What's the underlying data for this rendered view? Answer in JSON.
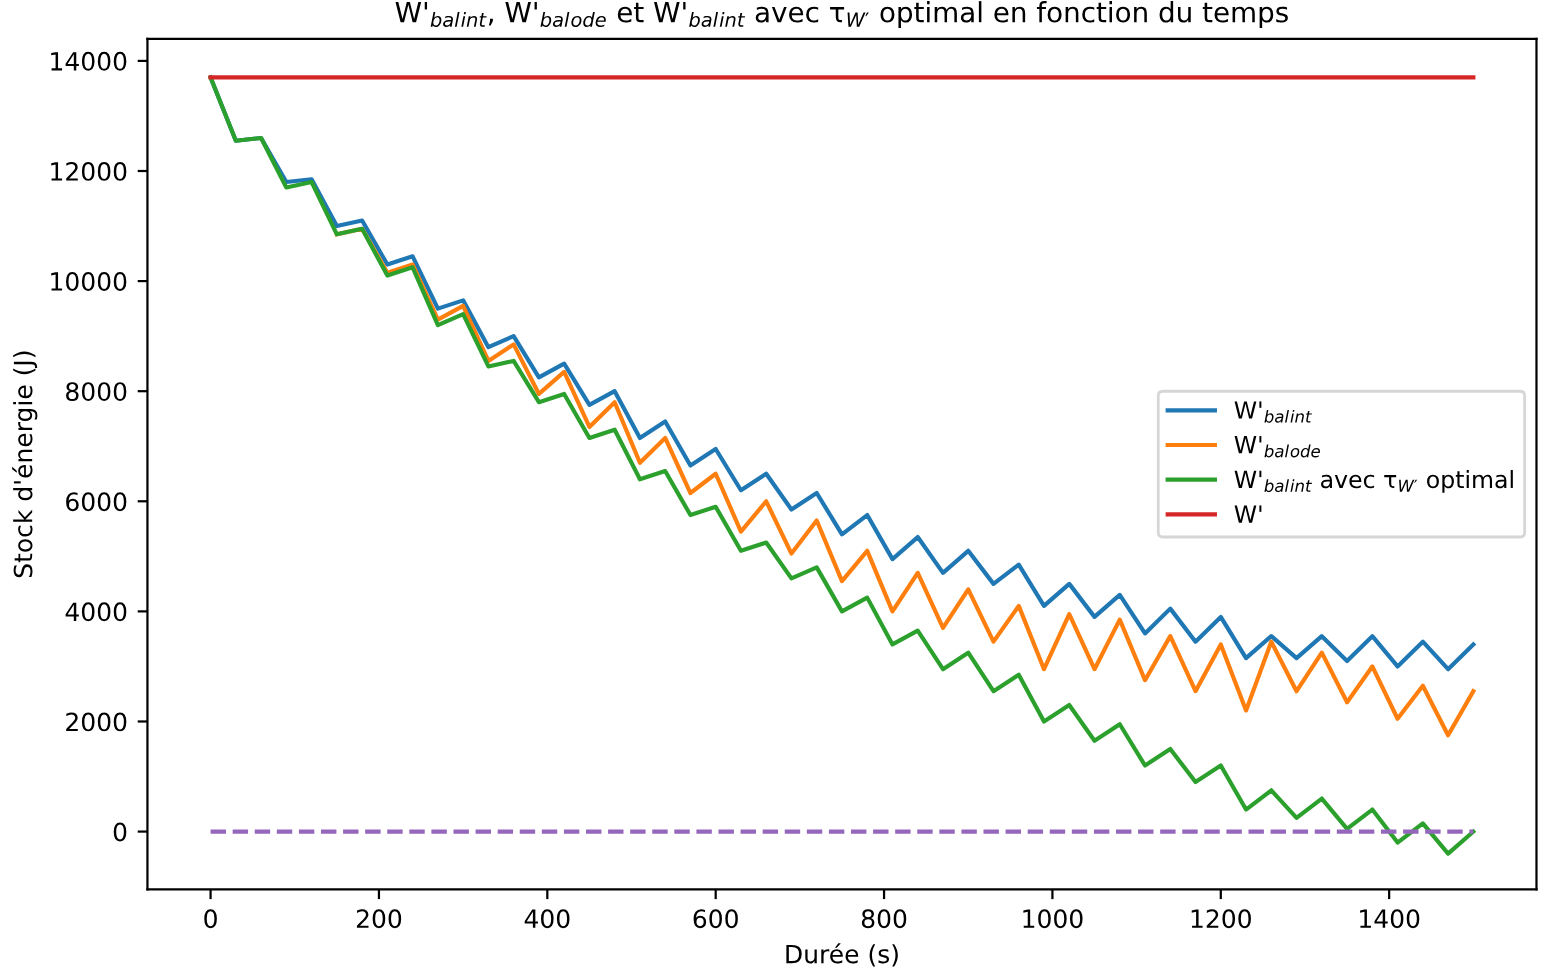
{
  "chart_data": {
    "type": "line",
    "title": "W'$_{bal}$$_{int}$, W'$_{bal}$$_{ode}$ et W'$_{bal}$$_{int}$ avec τ$_{W′}$ optimal en fonction du temps",
    "xlabel": "Durée (s)",
    "ylabel": "Stock d'énergie (J)",
    "x": [
      0,
      30,
      60,
      90,
      120,
      150,
      180,
      210,
      240,
      270,
      300,
      330,
      360,
      390,
      420,
      450,
      480,
      510,
      540,
      570,
      600,
      630,
      660,
      690,
      720,
      750,
      780,
      810,
      840,
      870,
      900,
      930,
      960,
      990,
      1020,
      1050,
      1080,
      1110,
      1140,
      1170,
      1200,
      1230,
      1260,
      1290,
      1320,
      1350,
      1380,
      1410,
      1440,
      1470,
      1500
    ],
    "series": [
      {
        "name": "W'$_{bal}$$_{int}$",
        "color": "#1f77b4",
        "values": [
          13700,
          12550,
          12600,
          11800,
          11850,
          11000,
          11100,
          10300,
          10450,
          9500,
          9650,
          8800,
          9000,
          8250,
          8500,
          7750,
          8000,
          7150,
          7450,
          6650,
          6950,
          6200,
          6500,
          5850,
          6150,
          5400,
          5750,
          4950,
          5350,
          4700,
          5100,
          4500,
          4850,
          4100,
          4500,
          3900,
          4300,
          3600,
          4050,
          3450,
          3900,
          3150,
          3550,
          3150,
          3550,
          3100,
          3550,
          3000,
          3450,
          2950,
          3400
        ]
      },
      {
        "name": "W'$_{bal}$$_{ode}$",
        "color": "#ff7f0e",
        "values": [
          null,
          null,
          null,
          null,
          null,
          10850,
          10950,
          10150,
          10300,
          9300,
          9550,
          8550,
          8850,
          7950,
          8350,
          7350,
          7800,
          6700,
          7150,
          6150,
          6500,
          5450,
          6000,
          5050,
          5650,
          4550,
          5100,
          4000,
          4700,
          3700,
          4400,
          3450,
          4100,
          2950,
          3950,
          2950,
          3850,
          2750,
          3550,
          2550,
          3400,
          2200,
          3450,
          2550,
          3250,
          2350,
          3000,
          2050,
          2650,
          1750,
          2550
        ]
      },
      {
        "name": "W'$_{bal}$$_{int}$ avec τ$_{W′}$ optimal",
        "color": "#2ca02c",
        "values": [
          13700,
          12550,
          12600,
          11700,
          11800,
          10850,
          10950,
          10100,
          10250,
          9200,
          9400,
          8450,
          8550,
          7800,
          7950,
          7150,
          7300,
          6400,
          6550,
          5750,
          5900,
          5100,
          5250,
          4600,
          4800,
          4000,
          4250,
          3400,
          3650,
          2950,
          3250,
          2550,
          2850,
          2000,
          2300,
          1650,
          1950,
          1200,
          1500,
          900,
          1200,
          400,
          750,
          250,
          600,
          50,
          400,
          -200,
          150,
          -400,
          0
        ]
      },
      {
        "name": "W'",
        "color": "#d62728",
        "values": [
          13700,
          13700,
          13700,
          13700,
          13700,
          13700,
          13700,
          13700,
          13700,
          13700,
          13700,
          13700,
          13700,
          13700,
          13700,
          13700,
          13700,
          13700,
          13700,
          13700,
          13700,
          13700,
          13700,
          13700,
          13700,
          13700,
          13700,
          13700,
          13700,
          13700,
          13700,
          13700,
          13700,
          13700,
          13700,
          13700,
          13700,
          13700,
          13700,
          13700,
          13700,
          13700,
          13700,
          13700,
          13700,
          13700,
          13700,
          13700,
          13700,
          13700,
          13700
        ]
      },
      {
        "color": "#9467bd",
        "values": [
          0,
          0,
          0,
          0,
          0,
          0,
          0,
          0,
          0,
          0,
          0,
          0,
          0,
          0,
          0,
          0,
          0,
          0,
          0,
          0,
          0,
          0,
          0,
          0,
          0,
          0,
          0,
          0,
          0,
          0,
          0,
          0,
          0,
          0,
          0,
          0,
          0,
          0,
          0,
          0,
          0,
          0,
          0,
          0,
          0,
          0,
          0,
          0,
          0,
          0,
          0
        ],
        "line_style": "dashed"
      }
    ],
    "xlim": [
      -75,
      1575
    ],
    "ylim": [
      -1050,
      14400
    ],
    "xticks": [
      0,
      200,
      400,
      600,
      800,
      1000,
      1200,
      1400
    ],
    "yticks": [
      0,
      2000,
      4000,
      6000,
      8000,
      10000,
      12000,
      14000
    ],
    "grid": false,
    "legend": "right",
    "marker": "none",
    "line_style": "solid"
  }
}
